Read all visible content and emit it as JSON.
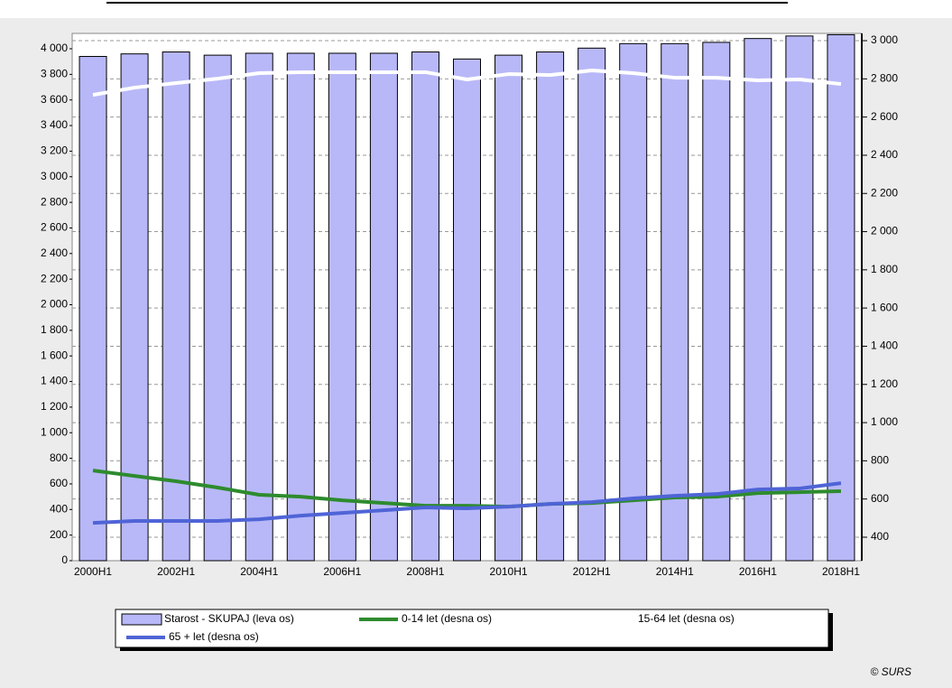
{
  "chart_data": {
    "type": "bar",
    "categories": [
      "2000H1",
      null,
      "2002H1",
      null,
      "2004H1",
      null,
      "2006H1",
      null,
      "2008H1",
      null,
      "2010H1",
      null,
      "2012H1",
      null,
      "2014H1",
      null,
      "2016H1",
      null,
      "2018H1"
    ],
    "series": [
      {
        "name": "Starost - SKUPAJ (leva os)",
        "type": "bar",
        "color": "#b8b8f8",
        "values": [
          3940,
          3960,
          3975,
          3950,
          3965,
          3965,
          3965,
          3965,
          3975,
          3920,
          3950,
          3975,
          4005,
          4040,
          4040,
          4050,
          4080,
          4100,
          4110
        ]
      },
      {
        "name": "0-14 let (desna os)",
        "type": "line",
        "axis": "y2",
        "color": "#2e8b2e",
        "values": [
          749,
          721,
          693,
          660,
          622,
          612,
          593,
          579,
          565,
          565,
          560,
          574,
          579,
          593,
          608,
          612,
          631,
          636,
          641
        ]
      },
      {
        "name": "15-64 let (desna os)",
        "type": "line",
        "axis": "y2",
        "color": "#ffffff",
        "values": [
          2716,
          2754,
          2778,
          2801,
          2830,
          2835,
          2835,
          2835,
          2835,
          2797,
          2825,
          2820,
          2844,
          2830,
          2806,
          2806,
          2792,
          2797,
          2773
        ]
      },
      {
        "name": "65 + let (desna os)",
        "type": "line",
        "axis": "y2",
        "color": "#4f64d6",
        "values": [
          475,
          485,
          485,
          485,
          494,
          513,
          527,
          541,
          556,
          551,
          560,
          574,
          584,
          603,
          617,
          626,
          650,
          655,
          683
        ]
      }
    ],
    "ylim": [
      0,
      4120
    ],
    "yticks": [
      0,
      200,
      400,
      600,
      800,
      {
        "value": 1000,
        "label": "1 000"
      },
      {
        "value": 1200,
        "label": "1 200"
      },
      {
        "value": 1400,
        "label": "1 400"
      },
      {
        "value": 1600,
        "label": "1 600"
      },
      {
        "value": 1800,
        "label": "1 800"
      },
      {
        "value": 2000,
        "label": "2 000"
      },
      {
        "value": 2200,
        "label": "2 200"
      },
      {
        "value": 2400,
        "label": "2 400"
      },
      {
        "value": 2600,
        "label": "2 600"
      },
      {
        "value": 2800,
        "label": "2 800"
      },
      {
        "value": 3000,
        "label": "3 000"
      },
      {
        "value": 3200,
        "label": "3 200"
      },
      {
        "value": 3400,
        "label": "3 400"
      },
      {
        "value": 3600,
        "label": "3 600"
      },
      {
        "value": 3800,
        "label": "3 800"
      },
      {
        "value": 4000,
        "label": "4 000"
      }
    ],
    "y2lim": [
      277,
      3038
    ],
    "y2ticks": [
      400,
      600,
      800,
      {
        "value": 1000,
        "label": "1 000"
      },
      {
        "value": 1200,
        "label": "1 200"
      },
      {
        "value": 1400,
        "label": "1 400"
      },
      {
        "value": 1600,
        "label": "1 600"
      },
      {
        "value": 1800,
        "label": "1 800"
      },
      {
        "value": 2000,
        "label": "2 000"
      },
      {
        "value": 2200,
        "label": "2 200"
      },
      {
        "value": 2400,
        "label": "2 400"
      },
      {
        "value": 2600,
        "label": "2 600"
      },
      {
        "value": 2800,
        "label": "2 800"
      },
      {
        "value": 3000,
        "label": "3 000"
      }
    ],
    "grid": "y2",
    "legend": "bottom",
    "source": "© SURS"
  }
}
